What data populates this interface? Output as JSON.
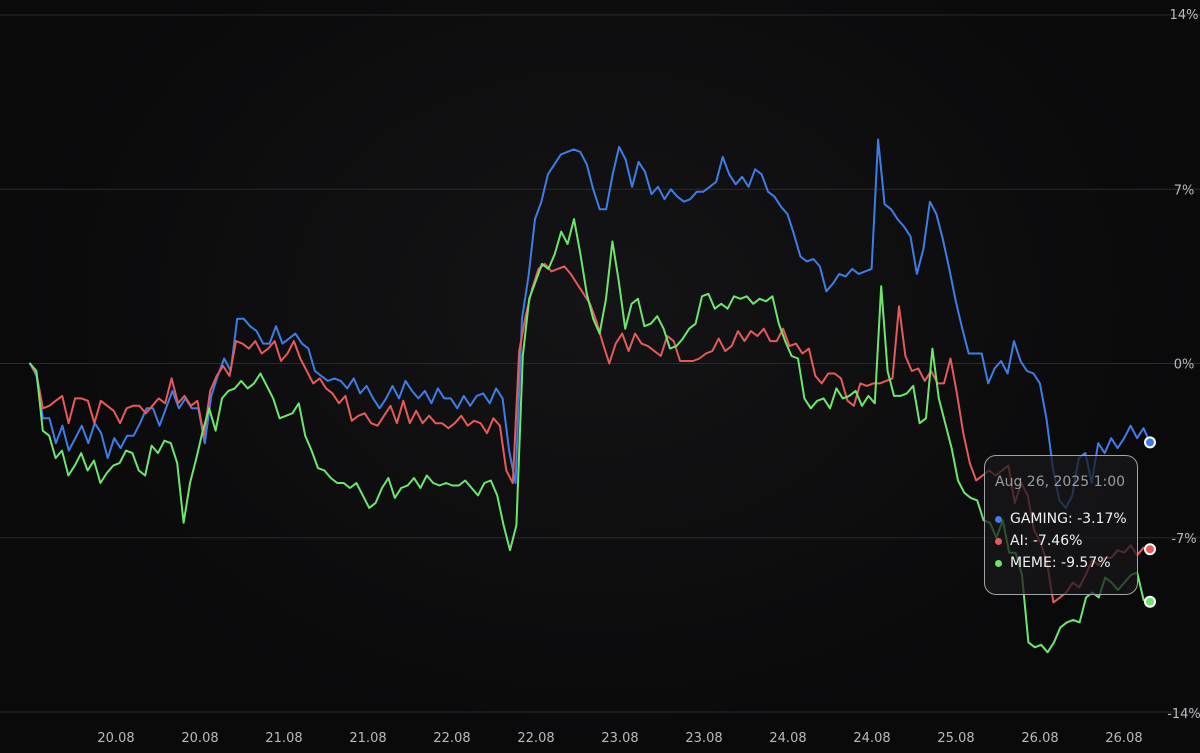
{
  "chart_data": {
    "type": "line",
    "x_tick_labels": [
      "20.08",
      "20.08",
      "21.08",
      "21.08",
      "22.08",
      "22.08",
      "23.08",
      "23.08",
      "24.08",
      "24.08",
      "25.08",
      "26.08",
      "26.08"
    ],
    "y_ticks": [
      14,
      7,
      0,
      -7,
      -14
    ],
    "y_tick_labels": [
      "14%",
      "7%",
      "0%",
      "-7%",
      "-14%"
    ],
    "ylim": [
      -14,
      14
    ],
    "unit": "%",
    "grid": true,
    "tooltip": {
      "date": "Aug 26, 2025 1:00",
      "rows": [
        {
          "label": "GAMING: -3.17%",
          "color": "#3f7de6"
        },
        {
          "label": "AI: -7.46%",
          "color": "#e55a5a"
        },
        {
          "label": "MEME: -9.57%",
          "color": "#6ee66e"
        }
      ]
    },
    "series": [
      {
        "name": "GAMING",
        "color": "#3f7de6",
        "values": [
          0,
          -0.5,
          -2.2,
          -2.2,
          -3.2,
          -2.5,
          -3.5,
          -3,
          -2.5,
          -3.2,
          -2.4,
          -2.8,
          -3.8,
          -3,
          -3.4,
          -2.9,
          -2.9,
          -2.4,
          -1.8,
          -1.8,
          -2.5,
          -1.8,
          -1.1,
          -1.8,
          -1.4,
          -1.8,
          -1.8,
          -3.2,
          -1.3,
          -0.5,
          0.2,
          -0.3,
          1.8,
          1.8,
          1.5,
          1.3,
          0.8,
          0.8,
          1.5,
          0.8,
          1.0,
          1.2,
          0.8,
          0.6,
          -0.3,
          -0.5,
          -0.7,
          -0.6,
          -0.7,
          -1.0,
          -0.6,
          -1.2,
          -0.9,
          -1.4,
          -1.8,
          -1.4,
          -0.9,
          -1.4,
          -0.7,
          -1.1,
          -1.4,
          -1.1,
          -1.6,
          -1.0,
          -1.4,
          -1.4,
          -1.8,
          -1.3,
          -1.7,
          -1.3,
          -1.2,
          -1.6,
          -1.0,
          -1.4,
          -3.5,
          -4.8,
          1.8,
          3.5,
          5.8,
          6.5,
          7.6,
          8.0,
          8.4,
          8.5,
          8.6,
          8.5,
          8.0,
          7.0,
          6.2,
          6.2,
          7.6,
          8.7,
          8.2,
          7.1,
          8.1,
          7.7,
          6.8,
          7.1,
          6.6,
          7.0,
          6.7,
          6.5,
          6.6,
          6.9,
          6.9,
          7.1,
          7.3,
          8.3,
          7.6,
          7.2,
          7.5,
          7.1,
          7.8,
          7.6,
          6.9,
          6.7,
          6.3,
          6.0,
          5.2,
          4.3,
          4.1,
          4.2,
          3.9,
          2.9,
          3.2,
          3.6,
          3.5,
          3.8,
          3.6,
          3.7,
          3.8,
          9.0,
          6.4,
          6.2,
          5.8,
          5.5,
          5.1,
          3.6,
          4.6,
          6.5,
          6.0,
          5.0,
          3.8,
          2.5,
          1.4,
          0.4,
          0.4,
          0.4,
          -0.8,
          -0.2,
          0.1,
          -0.4,
          0.9,
          0.1,
          -0.3,
          -0.4,
          -0.8,
          -2.2,
          -4.2,
          -5.5,
          -5.8,
          -5.3,
          -3.8,
          -3.6,
          -4.8,
          -3.2,
          -3.6,
          -3.0,
          -3.4,
          -3.0,
          -2.5,
          -3.0,
          -2.6,
          -3.17
        ]
      },
      {
        "name": "AI",
        "color": "#e55a5a",
        "values": [
          0,
          -0.4,
          -1.8,
          -1.7,
          -1.5,
          -1.3,
          -2.4,
          -1.4,
          -1.4,
          -1.5,
          -2.4,
          -1.5,
          -1.7,
          -1.9,
          -2.4,
          -1.8,
          -1.7,
          -1.7,
          -2.0,
          -1.7,
          -1.4,
          -1.6,
          -0.6,
          -1.6,
          -1.3,
          -1.7,
          -1.5,
          -2.9,
          -1.1,
          -0.5,
          -0.1,
          -0.5,
          0.9,
          0.8,
          0.6,
          0.9,
          0.4,
          0.6,
          0.9,
          0.1,
          0.4,
          0.9,
          0.2,
          -0.3,
          -0.8,
          -0.6,
          -1.0,
          -1.2,
          -1.6,
          -1.3,
          -2.3,
          -2.1,
          -2.0,
          -2.4,
          -2.5,
          -2.1,
          -1.7,
          -2.4,
          -1.5,
          -2.4,
          -1.9,
          -2.4,
          -2.1,
          -2.4,
          -2.4,
          -2.6,
          -2.4,
          -2.1,
          -2.5,
          -2.3,
          -2.4,
          -2.8,
          -2.2,
          -2.5,
          -4.3,
          -4.8,
          0.5,
          1.9,
          3.0,
          3.8,
          4.0,
          3.7,
          3.8,
          3.9,
          3.6,
          3.2,
          2.8,
          2.4,
          1.7,
          0.8,
          0,
          0.8,
          1.2,
          0.5,
          1.2,
          0.8,
          0.7,
          0.5,
          0.3,
          1.1,
          0.9,
          0.1,
          0.1,
          0.1,
          0.2,
          0.4,
          0.5,
          1.0,
          0.5,
          0.7,
          1.3,
          0.9,
          1.3,
          1.1,
          1.4,
          0.9,
          0.9,
          1.4,
          0.7,
          0.8,
          0.4,
          0.6,
          -0.5,
          -0.8,
          -0.4,
          -0.4,
          -0.6,
          -1.5,
          -1.7,
          -0.8,
          -0.9,
          -0.8,
          -0.8,
          -0.7,
          -0.6,
          2.3,
          0.3,
          -0.3,
          -0.2,
          -0.7,
          -0.3,
          -0.8,
          -0.8,
          0.2,
          -1.2,
          -2.8,
          -4.0,
          -4.7,
          -4.5,
          -4.3,
          -4.5,
          -4.3,
          -4.1,
          -5.6,
          -4.8,
          -5.3,
          -6.7,
          -7.2,
          -8.0,
          -9.6,
          -9.4,
          -9.2,
          -8.8,
          -9.0,
          -8.5,
          -7.9,
          -8.1,
          -7.8,
          -7.8,
          -7.5,
          -7.6,
          -7.3,
          -7.7,
          -7.4,
          -7.46
        ]
      },
      {
        "name": "MEME",
        "color": "#6ee66e",
        "values": [
          0,
          -0.3,
          -2.7,
          -2.9,
          -3.8,
          -3.5,
          -4.5,
          -4.1,
          -3.6,
          -4.3,
          -3.9,
          -4.8,
          -4.4,
          -4.1,
          -4.0,
          -3.5,
          -3.6,
          -4.3,
          -4.5,
          -3.3,
          -3.6,
          -3.1,
          -3.2,
          -4.0,
          -6.4,
          -4.8,
          -3.8,
          -2.7,
          -1.8,
          -2.7,
          -1.4,
          -1.1,
          -1.0,
          -0.7,
          -1.0,
          -0.8,
          -0.4,
          -0.9,
          -1.4,
          -2.2,
          -2.1,
          -2.0,
          -1.6,
          -2.9,
          -3.5,
          -4.2,
          -4.3,
          -4.6,
          -4.8,
          -4.8,
          -5.0,
          -4.8,
          -5.3,
          -5.8,
          -5.6,
          -5.0,
          -4.6,
          -5.4,
          -5.0,
          -4.9,
          -4.6,
          -5.0,
          -4.5,
          -4.8,
          -4.9,
          -4.8,
          -4.9,
          -4.9,
          -4.7,
          -5.0,
          -5.3,
          -4.8,
          -4.7,
          -5.3,
          -6.5,
          -7.5,
          -6.5,
          0.3,
          2.6,
          3.3,
          4.0,
          3.8,
          4.4,
          5.3,
          4.8,
          5.8,
          4.4,
          2.8,
          1.8,
          1.2,
          2.6,
          4.9,
          3.3,
          1.4,
          2.4,
          2.6,
          1.5,
          1.6,
          1.9,
          1.4,
          0.6,
          0.7,
          1.0,
          1.4,
          1.6,
          2.7,
          2.8,
          2.2,
          2.4,
          2.2,
          2.7,
          2.6,
          2.7,
          2.4,
          2.6,
          2.5,
          2.7,
          1.6,
          0.9,
          0.3,
          0.2,
          -1.4,
          -1.8,
          -1.5,
          -1.4,
          -1.8,
          -1.0,
          -1.4,
          -1.3,
          -1.1,
          -1.7,
          -1.3,
          -1.6,
          3.1,
          -0.3,
          -1.3,
          -1.3,
          -1.2,
          -0.9,
          -2.4,
          -2.2,
          0.6,
          -1.4,
          -2.4,
          -3.4,
          -4.7,
          -5.2,
          -5.4,
          -5.5,
          -6.3,
          -6.4,
          -7.0,
          -6.3,
          -7.6,
          -7.6,
          -8.5,
          -11.2,
          -11.4,
          -11.3,
          -11.6,
          -11.2,
          -10.6,
          -10.4,
          -10.3,
          -10.4,
          -9.4,
          -9.2,
          -9.4,
          -8.6,
          -8.8,
          -9.1,
          -8.8,
          -8.5,
          -8.4,
          -9.5,
          -9.57
        ]
      }
    ]
  }
}
